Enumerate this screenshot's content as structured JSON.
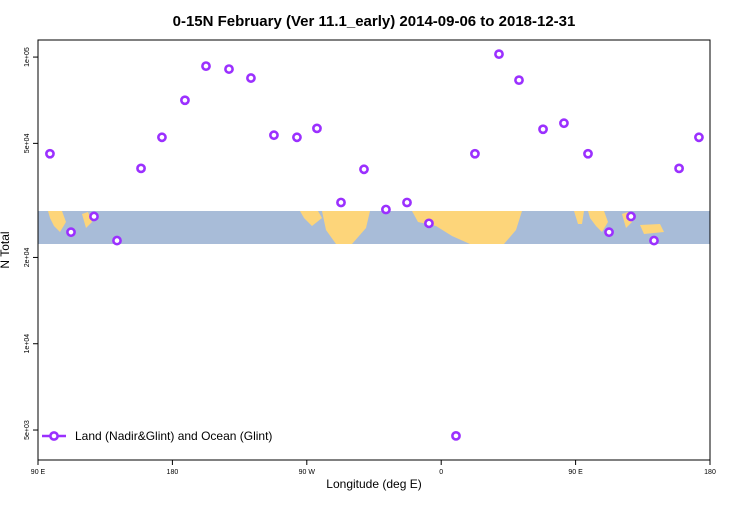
{
  "chart_data": {
    "type": "scatter",
    "title": "0-15N February (Ver 11.1_early)   2014-09-06 to 2018-12-31",
    "x_label": "Longitude (deg E)",
    "y_label": "N Total",
    "xlim": [
      90,
      540
    ],
    "xticks": [
      {
        "value": 90,
        "label": "90 E"
      },
      180,
      {
        "value": 270,
        "label": "90 W"
      },
      {
        "value": 360,
        "label": "0"
      },
      {
        "value": 450,
        "label": "90 E"
      },
      {
        "value": 540,
        "label": "180"
      }
    ],
    "ylim": [
      3930,
      114700
    ],
    "log_y": true,
    "yticks": [
      {
        "value": 100000,
        "label": "1e+05"
      },
      {
        "value": 50000,
        "label": "5e+04"
      },
      {
        "value": 20000,
        "label": "2e+04"
      },
      {
        "value": 10000,
        "label": "1e+04"
      },
      {
        "value": 5000,
        "label": "5e+03"
      }
    ],
    "legend": "lower left",
    "series": [
      {
        "name": "Land (Nadir&Glint) and Ocean (Glint)",
        "color": "#9b30ff",
        "x": [
          98,
          112.1,
          127.5,
          142.9,
          159,
          173,
          188.4,
          202.5,
          217.9,
          232.6,
          248,
          263.4,
          276.8,
          292.9,
          308.3,
          323,
          337.1,
          351.8,
          369.9,
          382.6,
          398.7,
          412.1,
          428.2,
          442.2,
          458.3,
          472.4,
          487.1,
          502.5,
          519.3,
          532.6
        ],
        "values": [
          46000,
          24500,
          27800,
          22900,
          40900,
          52500,
          70700,
          93000,
          90800,
          84500,
          53400,
          52500,
          56400,
          31100,
          40600,
          29400,
          31100,
          26300,
          4770,
          46000,
          102400,
          83100,
          56000,
          58800,
          46000,
          24500,
          27800,
          22900,
          40900,
          52500
        ]
      }
    ]
  }
}
